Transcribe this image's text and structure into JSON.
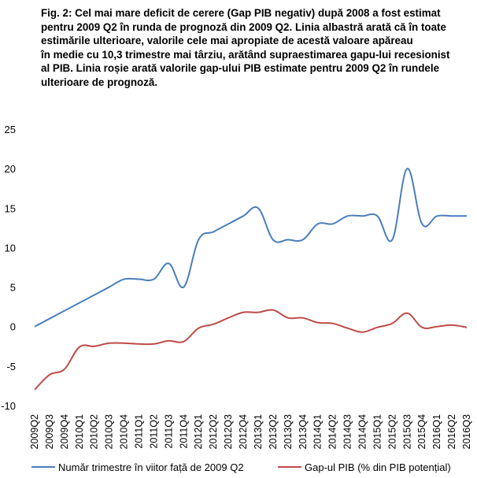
{
  "caption": {
    "lines": [
      "Fig. 2: Cel mai mare deficit de cerere (Gap PIB negativ) după 2008 a fost estimat",
      "pentru 2009 Q2 în runda de prognoză din 2009 Q2. Linia albastră arată că în toate",
      "estimările ulterioare, valorile cele mai apropiate de acestă valoare apăreau",
      "în medie cu 10,3 trimestre mai târziu, arătând supraestimarea gapu-lui recesionist",
      "al PIB. Linia roșie arată valorile gap-ului PIB estimate pentru 2009 Q2 în rundele",
      "ulterioare de prognoză."
    ]
  },
  "chart_data": {
    "type": "line",
    "categories": [
      "2009Q2",
      "2009Q3",
      "2009Q4",
      "2010Q1",
      "2010Q2",
      "2010Q3",
      "2010Q4",
      "2011Q1",
      "2011Q2",
      "2011Q3",
      "2011Q4",
      "2012Q1",
      "2012Q2",
      "2012Q3",
      "2012Q4",
      "2013Q1",
      "2013Q2",
      "2013Q3",
      "2013Q4",
      "2014Q1",
      "2014Q2",
      "2014Q3",
      "2014Q4",
      "2015Q1",
      "2015Q2",
      "2015Q3",
      "2015Q4",
      "2016Q1",
      "2016Q2",
      "2016Q3"
    ],
    "ylim": [
      -10,
      25
    ],
    "yticks": [
      -10,
      -5,
      0,
      5,
      10,
      15,
      20,
      25
    ],
    "grid": false,
    "legend_position": "bottom",
    "series": [
      {
        "name": "Număr trimestre în viitor față de 2009 Q2",
        "color": "#4a7ebb",
        "values": [
          0,
          1,
          2,
          3,
          4,
          5,
          6,
          6,
          6,
          8,
          5,
          11,
          12,
          13,
          14,
          15,
          11,
          11,
          11,
          13,
          13,
          14,
          14,
          14,
          11,
          20,
          13,
          14,
          14,
          14
        ]
      },
      {
        "name": "Gap-ul PIB (% din PIB potențial)",
        "color": "#be4b48",
        "values": [
          -8,
          -6.1,
          -5.4,
          -2.6,
          -2.5,
          -2.1,
          -2.1,
          -2.2,
          -2.2,
          -1.8,
          -1.9,
          -0.2,
          0.3,
          1.1,
          1.8,
          1.8,
          2.1,
          1.1,
          1.1,
          0.5,
          0.4,
          -0.2,
          -0.7,
          -0.1,
          0.4,
          1.7,
          -0.1,
          0.0,
          0.2,
          -0.1
        ]
      }
    ]
  }
}
